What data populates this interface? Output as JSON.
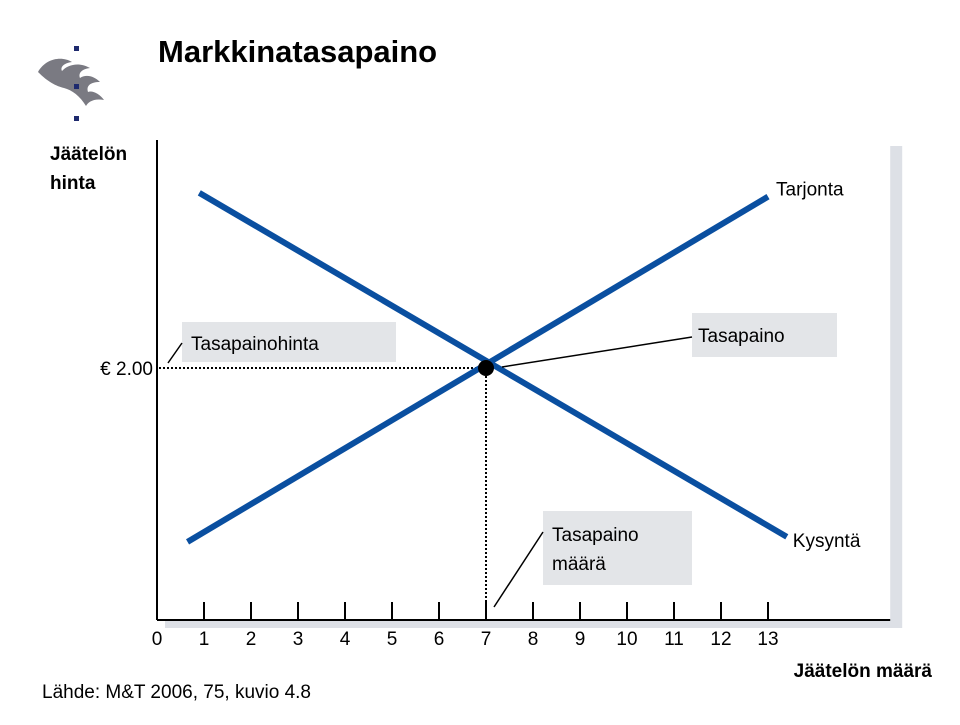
{
  "slide": {
    "title": "Markkinatasapaino",
    "source": "Lähde: M&T 2006, 75, kuvio 4.8"
  },
  "colors": {
    "curve": "#0a4fa0",
    "label_box": "#e3e5e8",
    "plot_shadow": "#dde0e6",
    "logo": "#7a7a82",
    "logo_accent": "#1e2a6e"
  },
  "chart_data": {
    "type": "line",
    "title": "Markkinatasapaino",
    "ylabel_lines": [
      "Jäätelön",
      "hinta"
    ],
    "xlabel": "Jäätelön määrä",
    "xlim": [
      0,
      15.6
    ],
    "x_ticks": [
      "0",
      "1",
      "2",
      "3",
      "4",
      "5",
      "6",
      "7",
      "8",
      "9",
      "10",
      "11",
      "12",
      "13"
    ],
    "y_tick_label": "€ 2.00",
    "series": [
      {
        "name": "Tarjonta",
        "x": [
          0.65,
          13.0
        ],
        "y": [
          0.62,
          3.36
        ]
      },
      {
        "name": "Kysyntä",
        "x": [
          0.9,
          13.4
        ],
        "y": [
          3.39,
          0.66
        ]
      }
    ],
    "equilibrium": {
      "x": 7,
      "y": 2.0
    },
    "annotations": {
      "price": "Tasapainohinta",
      "point": "Tasapaino",
      "quantity_lines": [
        "Tasapaino",
        "määrä"
      ]
    }
  }
}
